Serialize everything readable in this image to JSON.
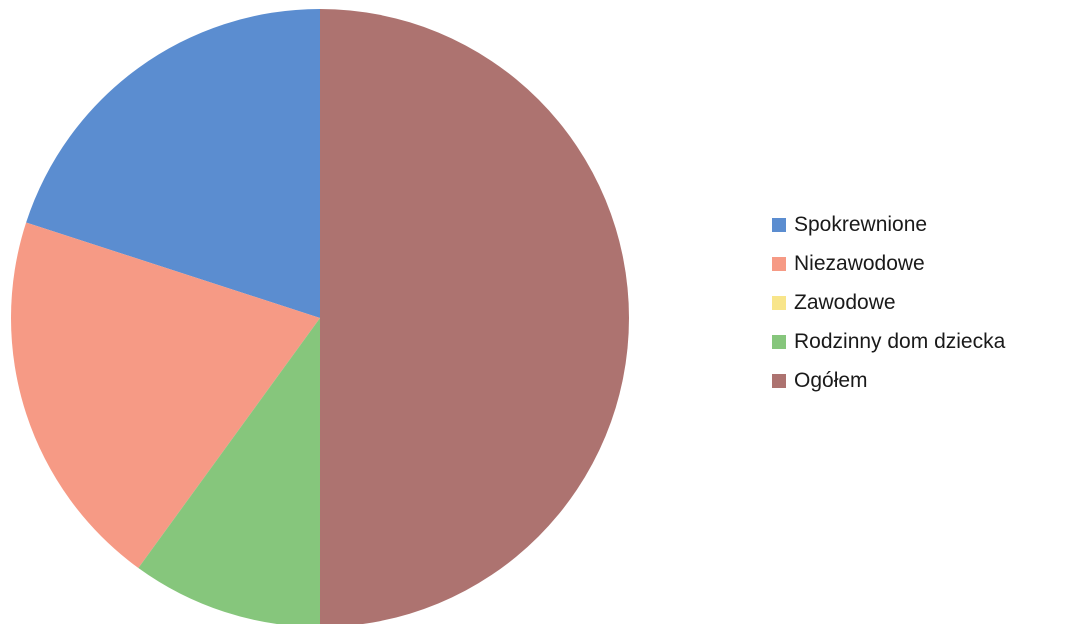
{
  "chart_data": {
    "type": "pie",
    "title": "",
    "start_angle_deg": 0,
    "direction": "counterclockwise",
    "legend_position": "right",
    "slices": [
      {
        "label": "Spokrewnione",
        "value": 20,
        "color": "#5b8dd0"
      },
      {
        "label": "Niezawodowe",
        "value": 20,
        "color": "#f69a85"
      },
      {
        "label": "Zawodowe",
        "value": 0,
        "color": "#f8e58a"
      },
      {
        "label": "Rodzinny dom dziecka",
        "value": 10,
        "color": "#86c67c"
      },
      {
        "label": "Ogółem",
        "value": 50,
        "color": "#ad7370"
      }
    ]
  }
}
